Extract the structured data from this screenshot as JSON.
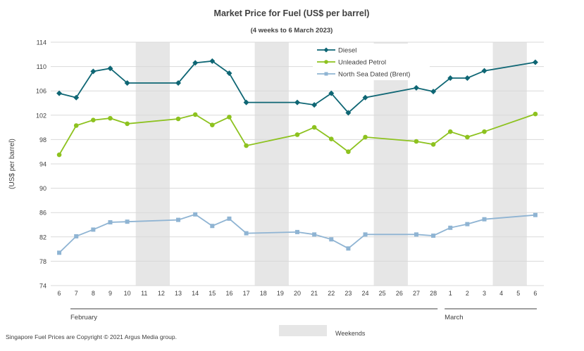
{
  "chart_data": {
    "type": "line",
    "title": "Market Price for Fuel (US$ per barrel)",
    "subtitle": "(4 weeks to 6 March 2023)",
    "ylabel": "(US$ per barrel)",
    "xlabel": "",
    "ylim": [
      74,
      114
    ],
    "yticks": [
      74,
      78,
      82,
      86,
      90,
      94,
      98,
      102,
      106,
      110,
      114
    ],
    "grid": true,
    "legend_position": "top-center",
    "categories": [
      "6",
      "7",
      "8",
      "9",
      "10",
      "11",
      "12",
      "13",
      "14",
      "15",
      "16",
      "17",
      "18",
      "19",
      "20",
      "21",
      "22",
      "23",
      "24",
      "25",
      "26",
      "27",
      "28",
      "1",
      "2",
      "3",
      "4",
      "5",
      "6"
    ],
    "months": [
      {
        "label": "February",
        "start": 0,
        "end": 22
      },
      {
        "label": "March",
        "start": 23,
        "end": 28
      }
    ],
    "weekend_ranges": [
      [
        5,
        6
      ],
      [
        12,
        13
      ],
      [
        19,
        20
      ],
      [
        26,
        27
      ]
    ],
    "weekend_label": "Weekends",
    "series": [
      {
        "name": "Diesel",
        "color": "#0e6674",
        "marker": "diamond",
        "values": [
          105.6,
          104.9,
          109.2,
          109.7,
          107.3,
          null,
          null,
          107.3,
          110.6,
          110.9,
          108.9,
          104.1,
          null,
          null,
          104.1,
          103.7,
          105.6,
          102.4,
          104.9,
          null,
          null,
          106.5,
          105.9,
          108.1,
          108.1,
          109.3,
          null,
          null,
          110.7
        ]
      },
      {
        "name": "Unleaded Petrol",
        "color": "#8dc21f",
        "marker": "circle",
        "values": [
          95.5,
          100.3,
          101.2,
          101.5,
          100.6,
          null,
          null,
          101.4,
          102.1,
          100.4,
          101.7,
          97.0,
          null,
          null,
          98.8,
          100.0,
          98.1,
          96.0,
          98.4,
          null,
          null,
          97.7,
          97.2,
          99.3,
          98.4,
          99.3,
          null,
          null,
          102.2
        ]
      },
      {
        "name": "North Sea Dated (Brent)",
        "color": "#8fb4d3",
        "marker": "square",
        "values": [
          79.4,
          82.1,
          83.2,
          84.4,
          84.5,
          null,
          null,
          84.8,
          85.7,
          83.8,
          85.0,
          82.6,
          null,
          null,
          82.8,
          82.4,
          81.6,
          80.1,
          82.4,
          null,
          null,
          82.4,
          82.2,
          83.5,
          84.1,
          84.9,
          null,
          null,
          85.6
        ]
      }
    ]
  },
  "footer": {
    "copyright": "Singapore Fuel Prices are Copyright © 2021 Argus Media group."
  },
  "colors": {
    "weekend_band": "#e6e6e6",
    "grid": "#d9d9d9",
    "text": "#404040"
  }
}
